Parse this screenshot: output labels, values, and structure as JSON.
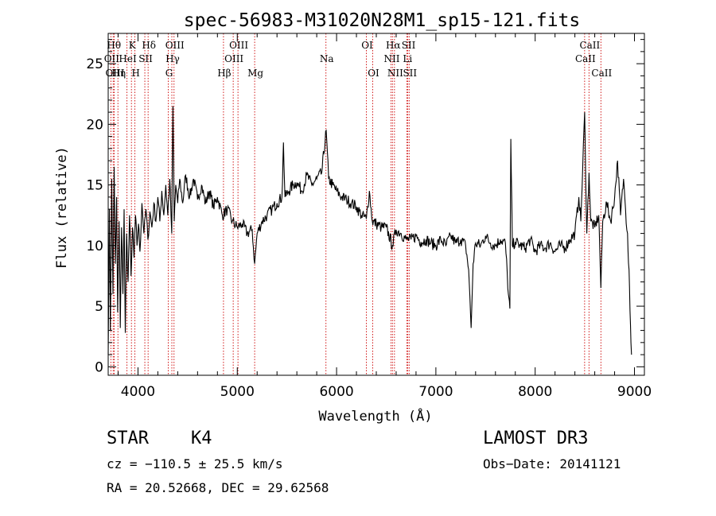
{
  "chart_data": {
    "type": "line",
    "title": "spec-56983-M31020N28M1_sp15-121.fits",
    "xlabel": "Wavelength (Å)",
    "ylabel": "Flux (relative)",
    "xlim": [
      3700,
      9100
    ],
    "ylim": [
      -0.7,
      27.5
    ],
    "xticks": [
      4000,
      5000,
      6000,
      7000,
      8000,
      9000
    ],
    "yticks": [
      0,
      5,
      10,
      15,
      20,
      25
    ],
    "colors": {
      "spectrum": "#000000",
      "lines": "#cc0000",
      "axes": "#000000"
    },
    "spectrum_anchors": [
      [
        3700,
        1.0
      ],
      [
        3712,
        13.0
      ],
      [
        3722,
        3.0
      ],
      [
        3735,
        15.5
      ],
      [
        3748,
        6.0
      ],
      [
        3760,
        16.5
      ],
      [
        3772,
        8.5
      ],
      [
        3785,
        14.0
      ],
      [
        3795,
        4.5
      ],
      [
        3810,
        12.0
      ],
      [
        3822,
        3.2
      ],
      [
        3835,
        11.5
      ],
      [
        3848,
        6.0
      ],
      [
        3860,
        13.0
      ],
      [
        3872,
        2.8
      ],
      [
        3885,
        11.0
      ],
      [
        3900,
        7.0
      ],
      [
        3915,
        12.5
      ],
      [
        3930,
        7.5
      ],
      [
        3945,
        11.5
      ],
      [
        3960,
        9.0
      ],
      [
        3975,
        12.5
      ],
      [
        3990,
        10.0
      ],
      [
        4005,
        11.8
      ],
      [
        4020,
        9.5
      ],
      [
        4040,
        13.5
      ],
      [
        4060,
        11.0
      ],
      [
        4080,
        13.0
      ],
      [
        4100,
        10.5
      ],
      [
        4120,
        12.8
      ],
      [
        4140,
        11.5
      ],
      [
        4160,
        13.5
      ],
      [
        4180,
        12.0
      ],
      [
        4200,
        14.0
      ],
      [
        4220,
        12.0
      ],
      [
        4240,
        14.5
      ],
      [
        4260,
        12.5
      ],
      [
        4280,
        15.0
      ],
      [
        4300,
        12.5
      ],
      [
        4320,
        15.5
      ],
      [
        4340,
        11.0
      ],
      [
        4352,
        21.5
      ],
      [
        4365,
        12.0
      ],
      [
        4380,
        15.0
      ],
      [
        4400,
        13.5
      ],
      [
        4420,
        15.5
      ],
      [
        4450,
        13.5
      ],
      [
        4480,
        15.8
      ],
      [
        4520,
        14.0
      ],
      [
        4560,
        15.5
      ],
      [
        4600,
        13.8
      ],
      [
        4640,
        15.0
      ],
      [
        4680,
        13.5
      ],
      [
        4720,
        14.5
      ],
      [
        4760,
        13.2
      ],
      [
        4800,
        14.0
      ],
      [
        4850,
        12.5
      ],
      [
        4900,
        13.0
      ],
      [
        4950,
        12.0
      ],
      [
        5000,
        11.5
      ],
      [
        5050,
        11.8
      ],
      [
        5100,
        11.0
      ],
      [
        5150,
        11.3
      ],
      [
        5175,
        8.5
      ],
      [
        5200,
        11.0
      ],
      [
        5250,
        12.0
      ],
      [
        5300,
        12.5
      ],
      [
        5350,
        13.0
      ],
      [
        5400,
        13.5
      ],
      [
        5450,
        14.0
      ],
      [
        5465,
        18.5
      ],
      [
        5480,
        14.0
      ],
      [
        5520,
        14.5
      ],
      [
        5560,
        15.0
      ],
      [
        5600,
        15.2
      ],
      [
        5650,
        14.5
      ],
      [
        5700,
        15.8
      ],
      [
        5750,
        15.0
      ],
      [
        5800,
        15.5
      ],
      [
        5850,
        16.0
      ],
      [
        5895,
        19.5
      ],
      [
        5920,
        15.5
      ],
      [
        5960,
        15.0
      ],
      [
        6000,
        14.5
      ],
      [
        6050,
        14.0
      ],
      [
        6100,
        13.8
      ],
      [
        6150,
        13.5
      ],
      [
        6200,
        13.2
      ],
      [
        6250,
        12.5
      ],
      [
        6300,
        12.2
      ],
      [
        6330,
        14.5
      ],
      [
        6360,
        12.0
      ],
      [
        6400,
        11.8
      ],
      [
        6450,
        11.5
      ],
      [
        6500,
        11.5
      ],
      [
        6563,
        10.0
      ],
      [
        6600,
        11.3
      ],
      [
        6650,
        11.0
      ],
      [
        6700,
        10.5
      ],
      [
        6750,
        10.5
      ],
      [
        6800,
        10.8
      ],
      [
        6850,
        10.3
      ],
      [
        6900,
        10.5
      ],
      [
        6950,
        10.2
      ],
      [
        7000,
        10.0
      ],
      [
        7050,
        10.5
      ],
      [
        7100,
        10.0
      ],
      [
        7150,
        10.8
      ],
      [
        7200,
        10.2
      ],
      [
        7250,
        10.5
      ],
      [
        7300,
        10.0
      ],
      [
        7330,
        8.0
      ],
      [
        7355,
        3.2
      ],
      [
        7375,
        8.5
      ],
      [
        7400,
        10.2
      ],
      [
        7450,
        10.0
      ],
      [
        7500,
        10.8
      ],
      [
        7550,
        10.2
      ],
      [
        7600,
        10.0
      ],
      [
        7650,
        10.5
      ],
      [
        7700,
        10.2
      ],
      [
        7730,
        6.0
      ],
      [
        7745,
        4.8
      ],
      [
        7755,
        18.8
      ],
      [
        7770,
        10.0
      ],
      [
        7800,
        10.3
      ],
      [
        7850,
        10.0
      ],
      [
        7900,
        9.8
      ],
      [
        7950,
        10.5
      ],
      [
        8000,
        9.5
      ],
      [
        8050,
        10.0
      ],
      [
        8100,
        9.8
      ],
      [
        8150,
        10.2
      ],
      [
        8200,
        9.5
      ],
      [
        8250,
        10.0
      ],
      [
        8300,
        9.8
      ],
      [
        8350,
        10.5
      ],
      [
        8400,
        11.0
      ],
      [
        8440,
        14.0
      ],
      [
        8460,
        12.0
      ],
      [
        8498,
        21.0
      ],
      [
        8520,
        11.0
      ],
      [
        8542,
        16.0
      ],
      [
        8560,
        12.0
      ],
      [
        8600,
        11.5
      ],
      [
        8640,
        12.5
      ],
      [
        8662,
        6.5
      ],
      [
        8680,
        12.0
      ],
      [
        8720,
        13.5
      ],
      [
        8760,
        12.0
      ],
      [
        8800,
        14.0
      ],
      [
        8830,
        17.0
      ],
      [
        8860,
        12.5
      ],
      [
        8890,
        15.5
      ],
      [
        8910,
        13.0
      ],
      [
        8930,
        11.0
      ],
      [
        8945,
        8.0
      ],
      [
        8960,
        3.5
      ],
      [
        8970,
        1.0
      ]
    ],
    "emission_lines": [
      {
        "name": "Hθ",
        "x": 3750,
        "row": 1
      },
      {
        "name": "OII",
        "x": 3727,
        "row": 2
      },
      {
        "name": "OIII",
        "x": 3760,
        "row": 3
      },
      {
        "name": "Hη",
        "x": 3798,
        "row": 3
      },
      {
        "name": "K",
        "x": 3934,
        "row": 1
      },
      {
        "name": "HeI",
        "x": 3889,
        "row": 2
      },
      {
        "name": "H",
        "x": 3969,
        "row": 3
      },
      {
        "name": "SII",
        "x": 4069,
        "row": 2
      },
      {
        "name": "Hδ",
        "x": 4102,
        "row": 1
      },
      {
        "name": "OIII",
        "x": 4363,
        "row": 1
      },
      {
        "name": "Hγ",
        "x": 4341,
        "row": 2
      },
      {
        "name": "G",
        "x": 4305,
        "row": 3
      },
      {
        "name": "Hβ",
        "x": 4861,
        "row": 3
      },
      {
        "name": "OIII",
        "x": 5007,
        "row": 1
      },
      {
        "name": "OIII",
        "x": 4959,
        "row": 2
      },
      {
        "name": "Mg",
        "x": 5175,
        "row": 3
      },
      {
        "name": "Na",
        "x": 5893,
        "row": 2
      },
      {
        "name": "OI",
        "x": 6300,
        "row": 1
      },
      {
        "name": "OI",
        "x": 6364,
        "row": 3
      },
      {
        "name": "Hα",
        "x": 6563,
        "row": 1
      },
      {
        "name": "NII",
        "x": 6548,
        "row": 2
      },
      {
        "name": "NII",
        "x": 6583,
        "row": 3
      },
      {
        "name": "SII",
        "x": 6717,
        "row": 1
      },
      {
        "name": "Li",
        "x": 6707,
        "row": 2
      },
      {
        "name": "SII",
        "x": 6731,
        "row": 3
      },
      {
        "name": "CaII",
        "x": 8542,
        "row": 1
      },
      {
        "name": "CaII",
        "x": 8498,
        "row": 2
      },
      {
        "name": "CaII",
        "x": 8662,
        "row": 3
      }
    ]
  },
  "info": {
    "class_label": "STAR",
    "subclass": "K4",
    "survey": "LAMOST DR3",
    "cz": "cz = −110.5 ± 25.5 km/s",
    "obs_date": "Obs−Date: 20141121",
    "coords": "RA =  20.52668, DEC =  29.62568"
  }
}
